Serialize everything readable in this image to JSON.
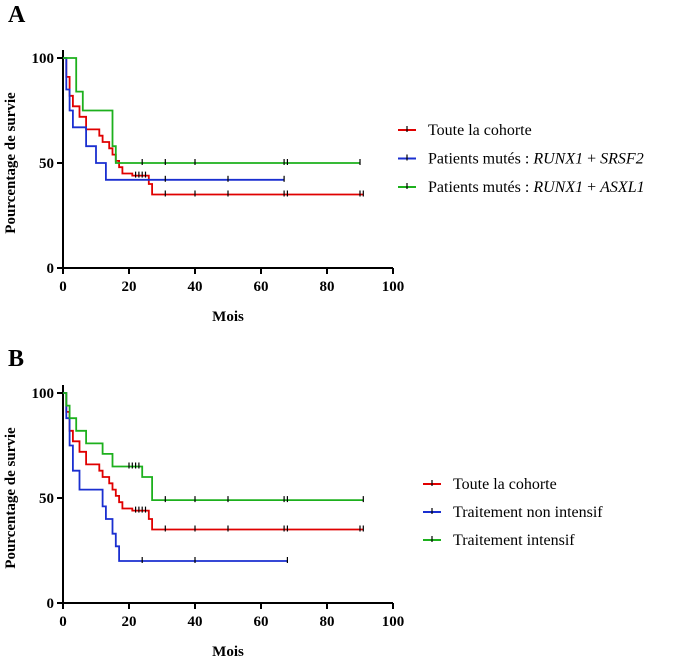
{
  "colors": {
    "red": "#e00000",
    "blue": "#1a2fd0",
    "green": "#1db01d"
  },
  "chart_data": [
    {
      "panel_label": "A",
      "type": "line",
      "xlabel": "Mois",
      "ylabel": "Pourcentage de survie",
      "xlim": [
        0,
        100
      ],
      "ylim": [
        0,
        100
      ],
      "xticks": [
        "0",
        "20",
        "40",
        "60",
        "80",
        "100"
      ],
      "yticks": [
        "0",
        "50",
        "100"
      ],
      "series": [
        {
          "name": "Toute la cohorte",
          "name_parts": [
            {
              "t": "Toute la cohorte",
              "i": false
            }
          ],
          "color": "red",
          "steps": [
            [
              0,
              100
            ],
            [
              1,
              91
            ],
            [
              2,
              82
            ],
            [
              3,
              77
            ],
            [
              5,
              72
            ],
            [
              7,
              66
            ],
            [
              11,
              63
            ],
            [
              12,
              60
            ],
            [
              14,
              57
            ],
            [
              15,
              54
            ],
            [
              16,
              51
            ],
            [
              17,
              48
            ],
            [
              18,
              45
            ],
            [
              21,
              44
            ],
            [
              26,
              40
            ],
            [
              27,
              35
            ],
            [
              91,
              35
            ]
          ],
          "censors": [
            [
              22,
              44
            ],
            [
              23,
              44
            ],
            [
              24,
              44
            ],
            [
              25,
              44
            ],
            [
              31,
              35
            ],
            [
              40,
              35
            ],
            [
              50,
              35
            ],
            [
              67,
              35
            ],
            [
              68,
              35
            ],
            [
              90,
              35
            ],
            [
              91,
              35
            ]
          ]
        },
        {
          "name": "Patients mutés : RUNX1 + SRSF2",
          "name_parts": [
            {
              "t": "Patients mutés : ",
              "i": false
            },
            {
              "t": "RUNX1",
              "i": true
            },
            {
              "t": " + ",
              "i": false
            },
            {
              "t": "SRSF2",
              "i": true
            }
          ],
          "color": "blue",
          "steps": [
            [
              0,
              100
            ],
            [
              1,
              85
            ],
            [
              2,
              75
            ],
            [
              3,
              67
            ],
            [
              7,
              58
            ],
            [
              10,
              50
            ],
            [
              13,
              42
            ],
            [
              67,
              42
            ]
          ],
          "censors": [
            [
              31,
              42
            ],
            [
              50,
              42
            ],
            [
              67,
              42
            ]
          ]
        },
        {
          "name": "Patients mutés : RUNX1 + ASXL1",
          "name_parts": [
            {
              "t": "Patients mutés : ",
              "i": false
            },
            {
              "t": "RUNX1",
              "i": true
            },
            {
              "t": " + ",
              "i": false
            },
            {
              "t": "ASXL1",
              "i": true
            }
          ],
          "color": "green",
          "steps": [
            [
              0,
              100
            ],
            [
              4,
              84
            ],
            [
              6,
              75
            ],
            [
              15,
              58
            ],
            [
              16,
              50
            ],
            [
              90,
              50
            ]
          ],
          "censors": [
            [
              24,
              50
            ],
            [
              31,
              50
            ],
            [
              40,
              50
            ],
            [
              67,
              50
            ],
            [
              68,
              50
            ],
            [
              90,
              50
            ]
          ]
        }
      ]
    },
    {
      "panel_label": "B",
      "type": "line",
      "xlabel": "Mois",
      "ylabel": "Pourcentage de survie",
      "xlim": [
        0,
        100
      ],
      "ylim": [
        0,
        100
      ],
      "xticks": [
        "0",
        "20",
        "40",
        "60",
        "80",
        "100"
      ],
      "yticks": [
        "0",
        "50",
        "100"
      ],
      "series": [
        {
          "name": "Toute la cohorte",
          "name_parts": [
            {
              "t": "Toute la cohorte",
              "i": false
            }
          ],
          "color": "red",
          "steps": [
            [
              0,
              100
            ],
            [
              1,
              91
            ],
            [
              2,
              82
            ],
            [
              3,
              77
            ],
            [
              5,
              72
            ],
            [
              7,
              66
            ],
            [
              11,
              63
            ],
            [
              12,
              60
            ],
            [
              14,
              57
            ],
            [
              15,
              54
            ],
            [
              16,
              51
            ],
            [
              17,
              48
            ],
            [
              18,
              45
            ],
            [
              21,
              44
            ],
            [
              26,
              40
            ],
            [
              27,
              35
            ],
            [
              91,
              35
            ]
          ],
          "censors": [
            [
              22,
              44
            ],
            [
              23,
              44
            ],
            [
              24,
              44
            ],
            [
              25,
              44
            ],
            [
              31,
              35
            ],
            [
              40,
              35
            ],
            [
              50,
              35
            ],
            [
              67,
              35
            ],
            [
              68,
              35
            ],
            [
              90,
              35
            ],
            [
              91,
              35
            ]
          ]
        },
        {
          "name": "Traitement non intensif",
          "name_parts": [
            {
              "t": "Traitement non intensif",
              "i": false
            }
          ],
          "color": "blue",
          "steps": [
            [
              0,
              100
            ],
            [
              1,
              88
            ],
            [
              2,
              75
            ],
            [
              3,
              63
            ],
            [
              5,
              54
            ],
            [
              12,
              46
            ],
            [
              13,
              40
            ],
            [
              15,
              33
            ],
            [
              16,
              27
            ],
            [
              17,
              20
            ],
            [
              68,
              20
            ]
          ],
          "censors": [
            [
              24,
              20
            ],
            [
              40,
              20
            ],
            [
              68,
              20
            ]
          ]
        },
        {
          "name": "Traitement intensif",
          "name_parts": [
            {
              "t": "Traitement intensif",
              "i": false
            }
          ],
          "color": "green",
          "steps": [
            [
              0,
              100
            ],
            [
              1,
              94
            ],
            [
              2,
              88
            ],
            [
              4,
              82
            ],
            [
              7,
              76
            ],
            [
              12,
              71
            ],
            [
              15,
              65
            ],
            [
              24,
              60
            ],
            [
              27,
              49
            ],
            [
              91,
              49
            ]
          ],
          "censors": [
            [
              20,
              65
            ],
            [
              21,
              65
            ],
            [
              22,
              65
            ],
            [
              23,
              65
            ],
            [
              31,
              49
            ],
            [
              40,
              49
            ],
            [
              50,
              49
            ],
            [
              67,
              49
            ],
            [
              68,
              49
            ],
            [
              91,
              49
            ]
          ]
        }
      ]
    }
  ]
}
